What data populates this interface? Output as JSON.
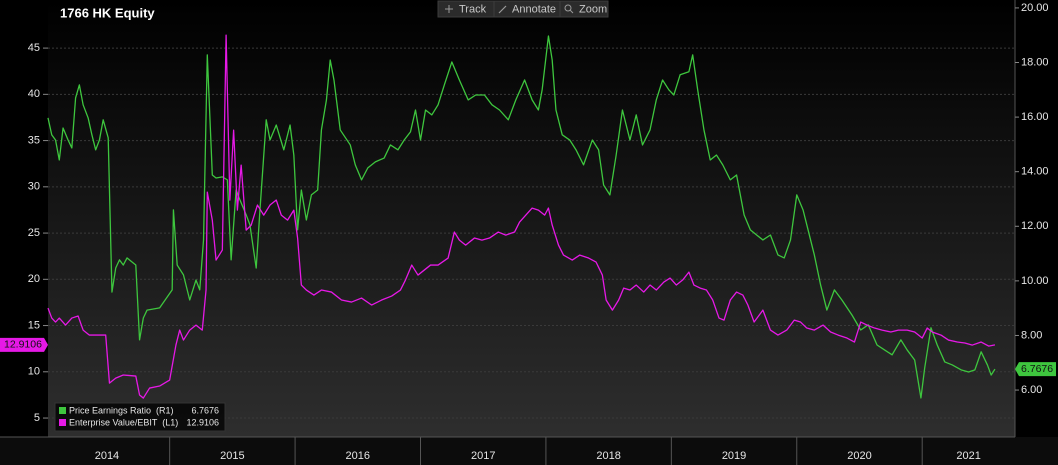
{
  "toolbar": [
    "Track",
    "Annotate",
    "Zoom"
  ],
  "chart_data": {
    "type": "line",
    "title": "1766 HK Equity",
    "xlim": [
      2014.03,
      2021.74
    ],
    "xticks": [
      {
        "value": 2014.5,
        "label": "2014"
      },
      {
        "value": 2015.5,
        "label": "2015"
      },
      {
        "value": 2016.5,
        "label": "2016"
      },
      {
        "value": 2017.5,
        "label": "2017"
      },
      {
        "value": 2018.5,
        "label": "2018"
      },
      {
        "value": 2019.5,
        "label": "2019"
      },
      {
        "value": 2020.5,
        "label": "2020"
      },
      {
        "value": 2021.37,
        "label": "2021"
      }
    ],
    "year_starts": [
      2015,
      2016,
      2017,
      2018,
      2019,
      2020,
      2021
    ],
    "ylim": [
      2.95,
      50.2
    ],
    "yticks": [
      5,
      10,
      15,
      20,
      25,
      30,
      35,
      40,
      45
    ],
    "y2lim": [
      4.28,
      20.29
    ],
    "y2ticks": [
      {
        "value": 6,
        "label": "6.00"
      },
      {
        "value": 8,
        "label": "8.00"
      },
      {
        "value": 10,
        "label": "10.00"
      },
      {
        "value": 12,
        "label": "12.00"
      },
      {
        "value": 14,
        "label": "14.00"
      },
      {
        "value": 16,
        "label": "16.00"
      },
      {
        "value": 18,
        "label": "18.00"
      },
      {
        "value": 20,
        "label": "20.00"
      }
    ],
    "grid": true,
    "legend": "lower left",
    "series": [
      {
        "name": "Price Earnings Ratio  (R1)",
        "color": "#3ec63e",
        "axis": "y2",
        "x": [
          2014.03,
          2014.06,
          2014.09,
          2014.12,
          2014.15,
          2014.19,
          2014.22,
          2014.25,
          2014.28,
          2014.31,
          2014.35,
          2014.38,
          2014.41,
          2014.44,
          2014.47,
          2014.51,
          2014.54,
          2014.57,
          2014.6,
          2014.63,
          2014.66,
          2014.7,
          2014.73,
          2014.76,
          2014.79,
          2014.82,
          2014.92,
          2015.02,
          2015.03,
          2015.06,
          2015.11,
          2015.16,
          2015.21,
          2015.24,
          2015.27,
          2015.3,
          2015.34,
          2015.37,
          2015.42,
          2015.46,
          2015.49,
          2015.53,
          2015.56,
          2015.61,
          2015.64,
          2015.69,
          2015.72,
          2015.77,
          2015.8,
          2015.85,
          2015.91,
          2015.96,
          2015.99,
          2016.02,
          2016.05,
          2016.09,
          2016.13,
          2016.18,
          2016.21,
          2016.25,
          2016.28,
          2016.31,
          2016.36,
          2016.44,
          2016.48,
          2016.53,
          2016.58,
          2016.64,
          2016.71,
          2016.76,
          2016.82,
          2016.87,
          2016.92,
          2016.96,
          2017.0,
          2017.04,
          2017.09,
          2017.14,
          2017.19,
          2017.25,
          2017.31,
          2017.38,
          2017.44,
          2017.51,
          2017.57,
          2017.63,
          2017.7,
          2017.76,
          2017.83,
          2017.89,
          2017.94,
          2017.97,
          2018.02,
          2018.05,
          2018.08,
          2018.13,
          2018.19,
          2018.24,
          2018.3,
          2018.37,
          2018.42,
          2018.46,
          2018.51,
          2018.56,
          2018.61,
          2018.67,
          2018.72,
          2018.77,
          2018.83,
          2018.88,
          2018.93,
          2018.98,
          2019.02,
          2019.07,
          2019.14,
          2019.17,
          2019.21,
          2019.26,
          2019.31,
          2019.36,
          2019.41,
          2019.47,
          2019.52,
          2019.58,
          2019.63,
          2019.68,
          2019.73,
          2019.79,
          2019.85,
          2019.9,
          2019.95,
          2020.0,
          2020.05,
          2020.09,
          2020.14,
          2020.19,
          2020.24,
          2020.3,
          2020.36,
          2020.44,
          2020.51,
          2020.57,
          2020.64,
          2020.7,
          2020.76,
          2020.83,
          2020.88,
          2020.94,
          2020.99,
          2021.02,
          2021.07,
          2021.12,
          2021.18,
          2021.24,
          2021.31,
          2021.37,
          2021.42,
          2021.47,
          2021.52,
          2021.55,
          2021.58
        ],
        "values": [
          15.97,
          15.35,
          15.16,
          14.43,
          15.6,
          15.16,
          14.87,
          16.7,
          17.18,
          16.45,
          15.97,
          15.35,
          14.8,
          15.16,
          15.9,
          15.24,
          9.59,
          10.47,
          10.77,
          10.58,
          10.84,
          10.69,
          10.58,
          7.84,
          8.64,
          8.93,
          9.01,
          9.67,
          12.6,
          10.58,
          10.22,
          9.3,
          10.03,
          9.67,
          11.5,
          18.28,
          13.88,
          13.77,
          13.81,
          13.7,
          10.77,
          13.33,
          12.97,
          12.42,
          12.05,
          10.47,
          12.6,
          15.9,
          15.16,
          15.71,
          14.8,
          15.71,
          14.61,
          11.87,
          13.33,
          12.23,
          13.15,
          13.33,
          15.53,
          16.63,
          18.09,
          17.36,
          15.53,
          14.98,
          14.25,
          13.7,
          14.14,
          14.36,
          14.5,
          14.98,
          14.8,
          15.16,
          15.46,
          16.26,
          15.16,
          16.26,
          16.08,
          16.45,
          17.18,
          18.02,
          17.36,
          16.63,
          16.81,
          16.81,
          16.45,
          16.26,
          15.9,
          16.63,
          17.36,
          16.63,
          16.26,
          17.0,
          18.97,
          18.09,
          16.26,
          15.35,
          15.16,
          14.8,
          14.25,
          15.16,
          14.8,
          13.51,
          13.15,
          14.61,
          16.26,
          15.16,
          16.08,
          14.98,
          15.53,
          16.63,
          17.36,
          17.0,
          16.81,
          17.55,
          17.66,
          18.28,
          17.0,
          15.53,
          14.43,
          14.61,
          14.25,
          13.7,
          13.88,
          12.42,
          11.87,
          11.68,
          11.5,
          11.68,
          10.95,
          10.84,
          11.5,
          13.15,
          12.6,
          11.87,
          10.95,
          9.85,
          8.93,
          9.67,
          9.3,
          8.75,
          8.2,
          8.39,
          7.65,
          7.47,
          7.29,
          7.84,
          7.47,
          7.1,
          5.71,
          6.81,
          8.28,
          7.65,
          7.03,
          6.92,
          6.74,
          6.66,
          6.74,
          7.4,
          6.92,
          6.55,
          6.7676
        ]
      },
      {
        "name": "Enterprise Value/EBIT  (L1)",
        "color": "#e619e6",
        "axis": "y",
        "x": [
          2014.03,
          2014.06,
          2014.09,
          2014.12,
          2014.17,
          2014.22,
          2014.27,
          2014.31,
          2014.36,
          2014.44,
          2014.49,
          2014.52,
          2014.57,
          2014.63,
          2014.73,
          2014.76,
          2014.79,
          2014.84,
          2014.92,
          2015.0,
          2015.05,
          2015.08,
          2015.11,
          2015.16,
          2015.21,
          2015.26,
          2015.29,
          2015.3,
          2015.34,
          2015.37,
          2015.42,
          2015.45,
          2015.48,
          2015.51,
          2015.54,
          2015.57,
          2015.61,
          2015.65,
          2015.7,
          2015.75,
          2015.8,
          2015.85,
          2015.89,
          2015.94,
          2015.99,
          2016.02,
          2016.05,
          2016.09,
          2016.15,
          2016.21,
          2016.29,
          2016.37,
          2016.45,
          2016.53,
          2016.61,
          2016.69,
          2016.77,
          2016.84,
          2016.88,
          2016.93,
          2016.98,
          2017.03,
          2017.08,
          2017.14,
          2017.22,
          2017.27,
          2017.31,
          2017.36,
          2017.43,
          2017.49,
          2017.55,
          2017.62,
          2017.68,
          2017.75,
          2017.79,
          2017.84,
          2017.89,
          2017.94,
          2017.99,
          2018.02,
          2018.05,
          2018.1,
          2018.14,
          2018.21,
          2018.27,
          2018.34,
          2018.4,
          2018.45,
          2018.48,
          2018.53,
          2018.58,
          2018.62,
          2018.67,
          2018.72,
          2018.78,
          2018.83,
          2018.88,
          2018.94,
          2018.99,
          2019.04,
          2019.09,
          2019.14,
          2019.18,
          2019.23,
          2019.28,
          2019.33,
          2019.38,
          2019.42,
          2019.47,
          2019.52,
          2019.57,
          2019.61,
          2019.66,
          2019.73,
          2019.79,
          2019.85,
          2019.92,
          2019.98,
          2020.03,
          2020.08,
          2020.14,
          2020.21,
          2020.27,
          2020.33,
          2020.4,
          2020.46,
          2020.51,
          2020.56,
          2020.62,
          2020.68,
          2020.75,
          2020.81,
          2020.88,
          2020.94,
          2021.0,
          2021.04,
          2021.08,
          2021.15,
          2021.21,
          2021.28,
          2021.34,
          2021.4,
          2021.47,
          2021.53,
          2021.58
        ],
        "values": [
          16.89,
          15.81,
          15.38,
          15.81,
          15.05,
          15.81,
          16.03,
          14.51,
          13.97,
          13.97,
          13.97,
          8.78,
          9.32,
          9.65,
          9.54,
          7.49,
          7.16,
          8.24,
          8.46,
          9.11,
          12.89,
          14.51,
          13.43,
          14.51,
          15.05,
          14.51,
          18.84,
          29.43,
          26.4,
          22.08,
          23.16,
          46.4,
          28.57,
          36.13,
          27.48,
          32.35,
          25.32,
          25.86,
          28.03,
          26.94,
          28.03,
          28.57,
          26.94,
          26.4,
          27.48,
          24.46,
          19.38,
          18.84,
          18.3,
          18.84,
          18.62,
          17.76,
          17.54,
          17.97,
          17.22,
          17.76,
          18.19,
          18.84,
          19.92,
          21.54,
          20.46,
          21.0,
          21.54,
          21.54,
          22.3,
          25.11,
          24.24,
          23.7,
          24.46,
          24.24,
          24.46,
          25.11,
          24.78,
          25.11,
          26.19,
          26.94,
          27.7,
          27.48,
          26.94,
          27.7,
          25.86,
          23.7,
          22.62,
          22.08,
          22.62,
          22.3,
          21.86,
          20.46,
          17.76,
          16.67,
          17.76,
          19.05,
          18.84,
          19.38,
          18.62,
          19.38,
          18.84,
          19.7,
          20.13,
          19.38,
          19.92,
          20.78,
          19.38,
          19.05,
          18.84,
          17.76,
          15.81,
          15.59,
          17.76,
          18.62,
          18.3,
          17.22,
          15.38,
          16.67,
          14.51,
          13.97,
          14.51,
          15.59,
          15.38,
          14.73,
          14.51,
          15.05,
          14.3,
          13.97,
          13.65,
          13.22,
          15.38,
          15.05,
          14.73,
          14.51,
          14.3,
          14.51,
          14.51,
          14.3,
          13.65,
          14.73,
          14.3,
          13.97,
          13.43,
          13.22,
          13.11,
          12.89,
          13.22,
          12.78,
          12.9106
        ]
      }
    ]
  }
}
